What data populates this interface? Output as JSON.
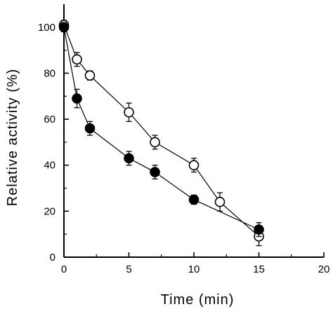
{
  "chart_data": {
    "type": "scatter",
    "xlabel": "Time (min)",
    "ylabel": "Relative activity (%)",
    "xlim": [
      0,
      20
    ],
    "ylim": [
      0,
      110
    ],
    "x_ticks": [
      0,
      5,
      10,
      15,
      20
    ],
    "y_ticks": [
      0,
      20,
      40,
      60,
      80,
      100
    ],
    "grid": false,
    "connected": true,
    "series": [
      {
        "marker": "open-circle",
        "x": [
          0,
          1,
          2,
          5,
          7,
          10,
          12,
          15
        ],
        "y": [
          101,
          86,
          79,
          63,
          50,
          40,
          24,
          9
        ],
        "error": [
          2,
          3,
          2,
          4,
          3,
          3,
          4,
          4
        ]
      },
      {
        "marker": "filled-circle",
        "x": [
          0,
          1,
          2,
          5,
          7,
          10,
          15
        ],
        "y": [
          100,
          69,
          56,
          43,
          37,
          25,
          12
        ],
        "error": [
          2,
          4,
          3,
          3,
          3,
          2,
          3
        ]
      }
    ]
  }
}
